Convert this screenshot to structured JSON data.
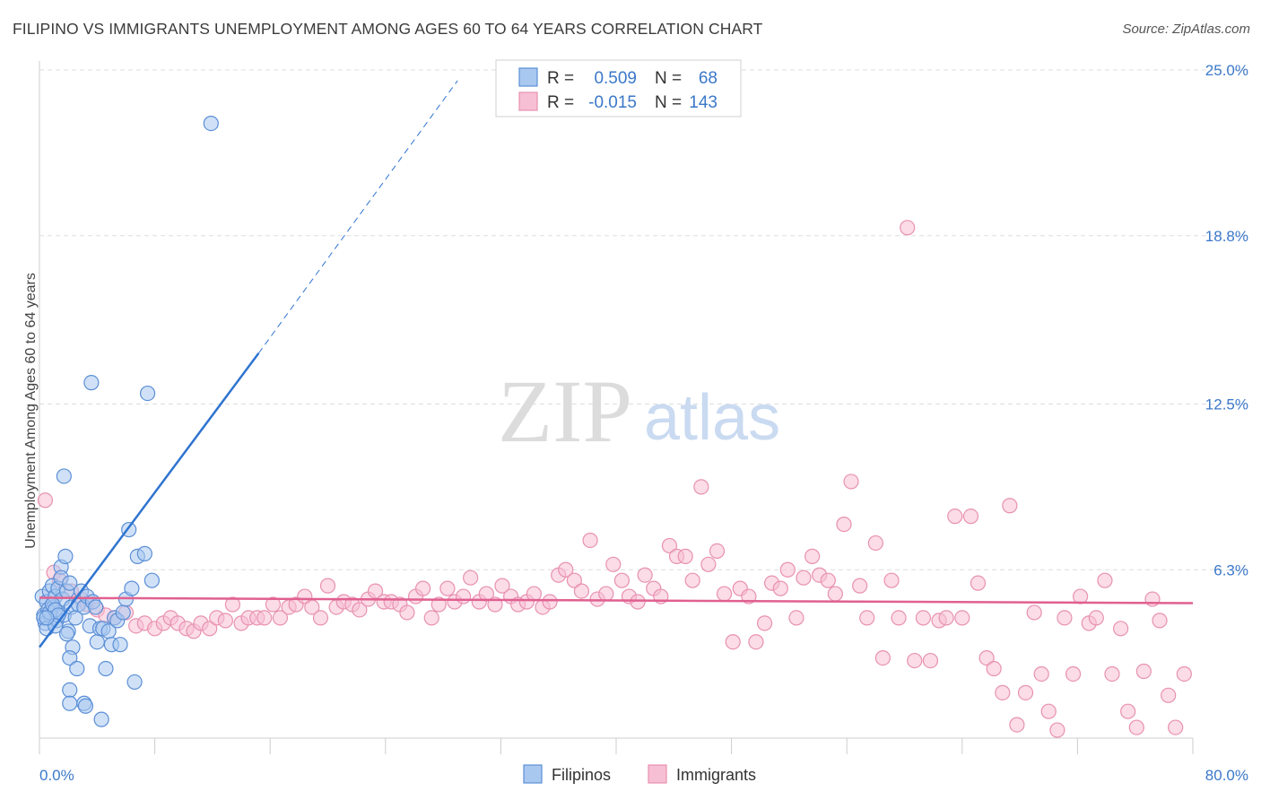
{
  "title": "FILIPINO VS IMMIGRANTS UNEMPLOYMENT AMONG AGES 60 TO 64 YEARS CORRELATION CHART",
  "source": "Source: ZipAtlas.com",
  "watermark": {
    "zip": "ZIP",
    "atlas": "atlas"
  },
  "colors": {
    "filipinos_fill": "#a9c8f0",
    "filipinos_stroke": "#5b8fd6",
    "filipinos_line": "#2f74d0",
    "immigrants_fill": "#f7bfd3",
    "immigrants_stroke": "#e891b0",
    "immigrants_line": "#e0608f",
    "value_text": "#3b78c9",
    "grid": "#dddddd"
  },
  "legend": {
    "rows": [
      {
        "r_label": "R =",
        "r_value": "0.509",
        "n_label": "N =",
        "n_value": "68"
      },
      {
        "r_label": "R =",
        "r_value": "-0.015",
        "n_label": "N =",
        "n_value": "143"
      }
    ]
  },
  "bottom_legend": {
    "filipinos": "Filipinos",
    "immigrants": "Immigrants"
  },
  "chart_data": {
    "type": "scatter",
    "title": "FILIPINO VS IMMIGRANTS UNEMPLOYMENT AMONG AGES 60 TO 64 YEARS CORRELATION CHART",
    "xlabel": "",
    "ylabel": "Unemployment Among Ages 60 to 64 years",
    "xlim": [
      0,
      80
    ],
    "ylim": [
      0,
      25.0
    ],
    "x_tick_labels": [
      "0.0%",
      "80.0%"
    ],
    "y_tick_values": [
      6.3,
      12.5,
      18.8,
      25.0
    ],
    "y_tick_labels": [
      "6.3%",
      "12.5%",
      "18.8%",
      "25.0%"
    ],
    "grid": "horizontal dashed",
    "series": [
      {
        "name": "Filipinos",
        "r": 0.509,
        "n": 68,
        "trend": {
          "x0": 0.0,
          "y0": 3.4,
          "x1": 15.2,
          "y1": 14.4,
          "dash_to_x": 29.0,
          "dash_to_y": 24.6
        },
        "points": [
          [
            0.2,
            5.3
          ],
          [
            0.3,
            4.6
          ],
          [
            0.4,
            4.3
          ],
          [
            0.5,
            5.1
          ],
          [
            0.6,
            4.8
          ],
          [
            0.7,
            5.5
          ],
          [
            0.8,
            4.5
          ],
          [
            0.9,
            5.7
          ],
          [
            1.0,
            4.9
          ],
          [
            1.1,
            5.3
          ],
          [
            1.2,
            4.4
          ],
          [
            1.3,
            5.6
          ],
          [
            1.4,
            4.7
          ],
          [
            1.5,
            6.4
          ],
          [
            1.5,
            6.0
          ],
          [
            1.6,
            5.2
          ],
          [
            1.7,
            4.6
          ],
          [
            1.8,
            6.8
          ],
          [
            1.9,
            5.5
          ],
          [
            2.0,
            4.0
          ],
          [
            2.1,
            5.8
          ],
          [
            2.2,
            4.9
          ],
          [
            0.3,
            4.5
          ],
          [
            0.5,
            4.1
          ],
          [
            0.7,
            4.7
          ],
          [
            0.9,
            5.0
          ],
          [
            1.1,
            4.8
          ],
          [
            1.3,
            4.6
          ],
          [
            2.3,
            3.4
          ],
          [
            2.5,
            4.5
          ],
          [
            2.7,
            5.0
          ],
          [
            2.9,
            5.5
          ],
          [
            3.1,
            4.9
          ],
          [
            3.3,
            5.3
          ],
          [
            3.5,
            4.2
          ],
          [
            3.7,
            5.1
          ],
          [
            3.9,
            4.9
          ],
          [
            4.0,
            3.6
          ],
          [
            4.2,
            4.1
          ],
          [
            4.4,
            4.1
          ],
          [
            4.6,
            2.6
          ],
          [
            4.8,
            4.0
          ],
          [
            5.0,
            3.5
          ],
          [
            5.2,
            4.5
          ],
          [
            5.4,
            4.4
          ],
          [
            5.6,
            3.5
          ],
          [
            5.8,
            4.7
          ],
          [
            6.0,
            5.2
          ],
          [
            6.2,
            7.8
          ],
          [
            6.4,
            5.6
          ],
          [
            6.6,
            2.1
          ],
          [
            6.8,
            6.8
          ],
          [
            7.3,
            6.9
          ],
          [
            7.8,
            5.9
          ],
          [
            3.6,
            13.3
          ],
          [
            7.5,
            12.9
          ],
          [
            11.9,
            23.0
          ],
          [
            1.7,
            9.8
          ],
          [
            2.1,
            3.0
          ],
          [
            2.1,
            1.8
          ],
          [
            2.1,
            1.3
          ],
          [
            3.1,
            1.3
          ],
          [
            3.2,
            1.2
          ],
          [
            4.3,
            0.7
          ],
          [
            2.6,
            2.6
          ],
          [
            1.1,
            4.2
          ],
          [
            0.5,
            4.5
          ],
          [
            1.9,
            3.9
          ]
        ]
      },
      {
        "name": "Immigrants",
        "r": -0.015,
        "n": 143,
        "trend": {
          "x0": 0.0,
          "y0": 5.25,
          "x1": 80.0,
          "y1": 5.05
        },
        "points": [
          [
            0.4,
            8.9
          ],
          [
            1.0,
            6.2
          ],
          [
            1.4,
            5.9
          ],
          [
            2.2,
            5.5
          ],
          [
            2.9,
            5.2
          ],
          [
            3.3,
            5.0
          ],
          [
            4.0,
            4.8
          ],
          [
            4.6,
            4.6
          ],
          [
            5.2,
            4.5
          ],
          [
            6.0,
            4.7
          ],
          [
            6.7,
            4.2
          ],
          [
            7.3,
            4.3
          ],
          [
            8.0,
            4.1
          ],
          [
            8.6,
            4.3
          ],
          [
            9.1,
            4.5
          ],
          [
            9.6,
            4.3
          ],
          [
            10.2,
            4.1
          ],
          [
            10.7,
            4.0
          ],
          [
            11.2,
            4.3
          ],
          [
            11.8,
            4.1
          ],
          [
            12.3,
            4.5
          ],
          [
            12.9,
            4.4
          ],
          [
            13.4,
            5.0
          ],
          [
            14.0,
            4.3
          ],
          [
            14.5,
            4.5
          ],
          [
            15.1,
            4.5
          ],
          [
            15.6,
            4.5
          ],
          [
            16.2,
            5.0
          ],
          [
            16.7,
            4.5
          ],
          [
            17.3,
            4.9
          ],
          [
            17.8,
            5.0
          ],
          [
            18.4,
            5.3
          ],
          [
            18.9,
            4.9
          ],
          [
            19.5,
            4.5
          ],
          [
            20.0,
            5.7
          ],
          [
            20.6,
            4.9
          ],
          [
            21.1,
            5.1
          ],
          [
            21.7,
            5.0
          ],
          [
            22.2,
            4.8
          ],
          [
            22.8,
            5.2
          ],
          [
            23.3,
            5.5
          ],
          [
            23.9,
            5.1
          ],
          [
            24.4,
            5.1
          ],
          [
            25.0,
            5.0
          ],
          [
            25.5,
            4.7
          ],
          [
            26.1,
            5.3
          ],
          [
            26.6,
            5.6
          ],
          [
            27.2,
            4.5
          ],
          [
            27.7,
            5.0
          ],
          [
            28.3,
            5.6
          ],
          [
            28.8,
            5.1
          ],
          [
            29.4,
            5.3
          ],
          [
            29.9,
            6.0
          ],
          [
            30.5,
            5.1
          ],
          [
            31.0,
            5.4
          ],
          [
            31.6,
            5.0
          ],
          [
            32.1,
            5.7
          ],
          [
            32.7,
            5.3
          ],
          [
            33.2,
            5.0
          ],
          [
            33.8,
            5.1
          ],
          [
            34.3,
            5.4
          ],
          [
            34.9,
            4.9
          ],
          [
            35.4,
            5.1
          ],
          [
            36.0,
            6.1
          ],
          [
            36.5,
            6.3
          ],
          [
            37.1,
            5.9
          ],
          [
            37.6,
            5.5
          ],
          [
            38.2,
            7.4
          ],
          [
            38.7,
            5.2
          ],
          [
            39.3,
            5.4
          ],
          [
            39.8,
            6.5
          ],
          [
            40.4,
            5.9
          ],
          [
            40.9,
            5.3
          ],
          [
            41.5,
            5.1
          ],
          [
            42.0,
            6.1
          ],
          [
            42.6,
            5.6
          ],
          [
            43.1,
            5.3
          ],
          [
            43.7,
            7.2
          ],
          [
            44.2,
            6.8
          ],
          [
            44.8,
            6.8
          ],
          [
            45.3,
            5.9
          ],
          [
            45.9,
            9.4
          ],
          [
            46.4,
            6.5
          ],
          [
            47.0,
            7.0
          ],
          [
            47.5,
            5.4
          ],
          [
            48.1,
            3.6
          ],
          [
            48.6,
            5.6
          ],
          [
            49.2,
            5.3
          ],
          [
            49.7,
            3.6
          ],
          [
            50.3,
            4.3
          ],
          [
            50.8,
            5.8
          ],
          [
            51.4,
            5.6
          ],
          [
            51.9,
            6.3
          ],
          [
            52.5,
            4.5
          ],
          [
            53.0,
            6.0
          ],
          [
            53.6,
            6.8
          ],
          [
            54.1,
            6.1
          ],
          [
            54.7,
            5.9
          ],
          [
            55.2,
            5.4
          ],
          [
            55.8,
            8.0
          ],
          [
            56.3,
            9.6
          ],
          [
            56.9,
            5.7
          ],
          [
            57.4,
            4.5
          ],
          [
            58.0,
            7.3
          ],
          [
            58.5,
            3.0
          ],
          [
            59.1,
            5.9
          ],
          [
            59.6,
            4.5
          ],
          [
            60.2,
            19.1
          ],
          [
            60.7,
            2.9
          ],
          [
            61.3,
            4.5
          ],
          [
            61.8,
            2.9
          ],
          [
            62.4,
            4.4
          ],
          [
            62.9,
            4.5
          ],
          [
            63.5,
            8.3
          ],
          [
            64.0,
            4.5
          ],
          [
            64.6,
            8.3
          ],
          [
            65.1,
            5.8
          ],
          [
            65.7,
            3.0
          ],
          [
            66.2,
            2.6
          ],
          [
            66.8,
            1.7
          ],
          [
            67.3,
            8.7
          ],
          [
            67.8,
            0.5
          ],
          [
            68.4,
            1.7
          ],
          [
            69.0,
            4.7
          ],
          [
            69.5,
            2.4
          ],
          [
            70.0,
            1.0
          ],
          [
            70.6,
            0.3
          ],
          [
            71.1,
            4.5
          ],
          [
            71.7,
            2.4
          ],
          [
            72.2,
            5.3
          ],
          [
            72.8,
            4.3
          ],
          [
            73.3,
            4.5
          ],
          [
            73.9,
            5.9
          ],
          [
            74.4,
            2.4
          ],
          [
            75.0,
            4.1
          ],
          [
            75.5,
            1.0
          ],
          [
            76.1,
            0.4
          ],
          [
            76.6,
            2.5
          ],
          [
            77.2,
            5.2
          ],
          [
            77.7,
            4.4
          ],
          [
            78.3,
            1.6
          ],
          [
            78.8,
            0.4
          ],
          [
            79.4,
            2.4
          ]
        ]
      }
    ]
  }
}
